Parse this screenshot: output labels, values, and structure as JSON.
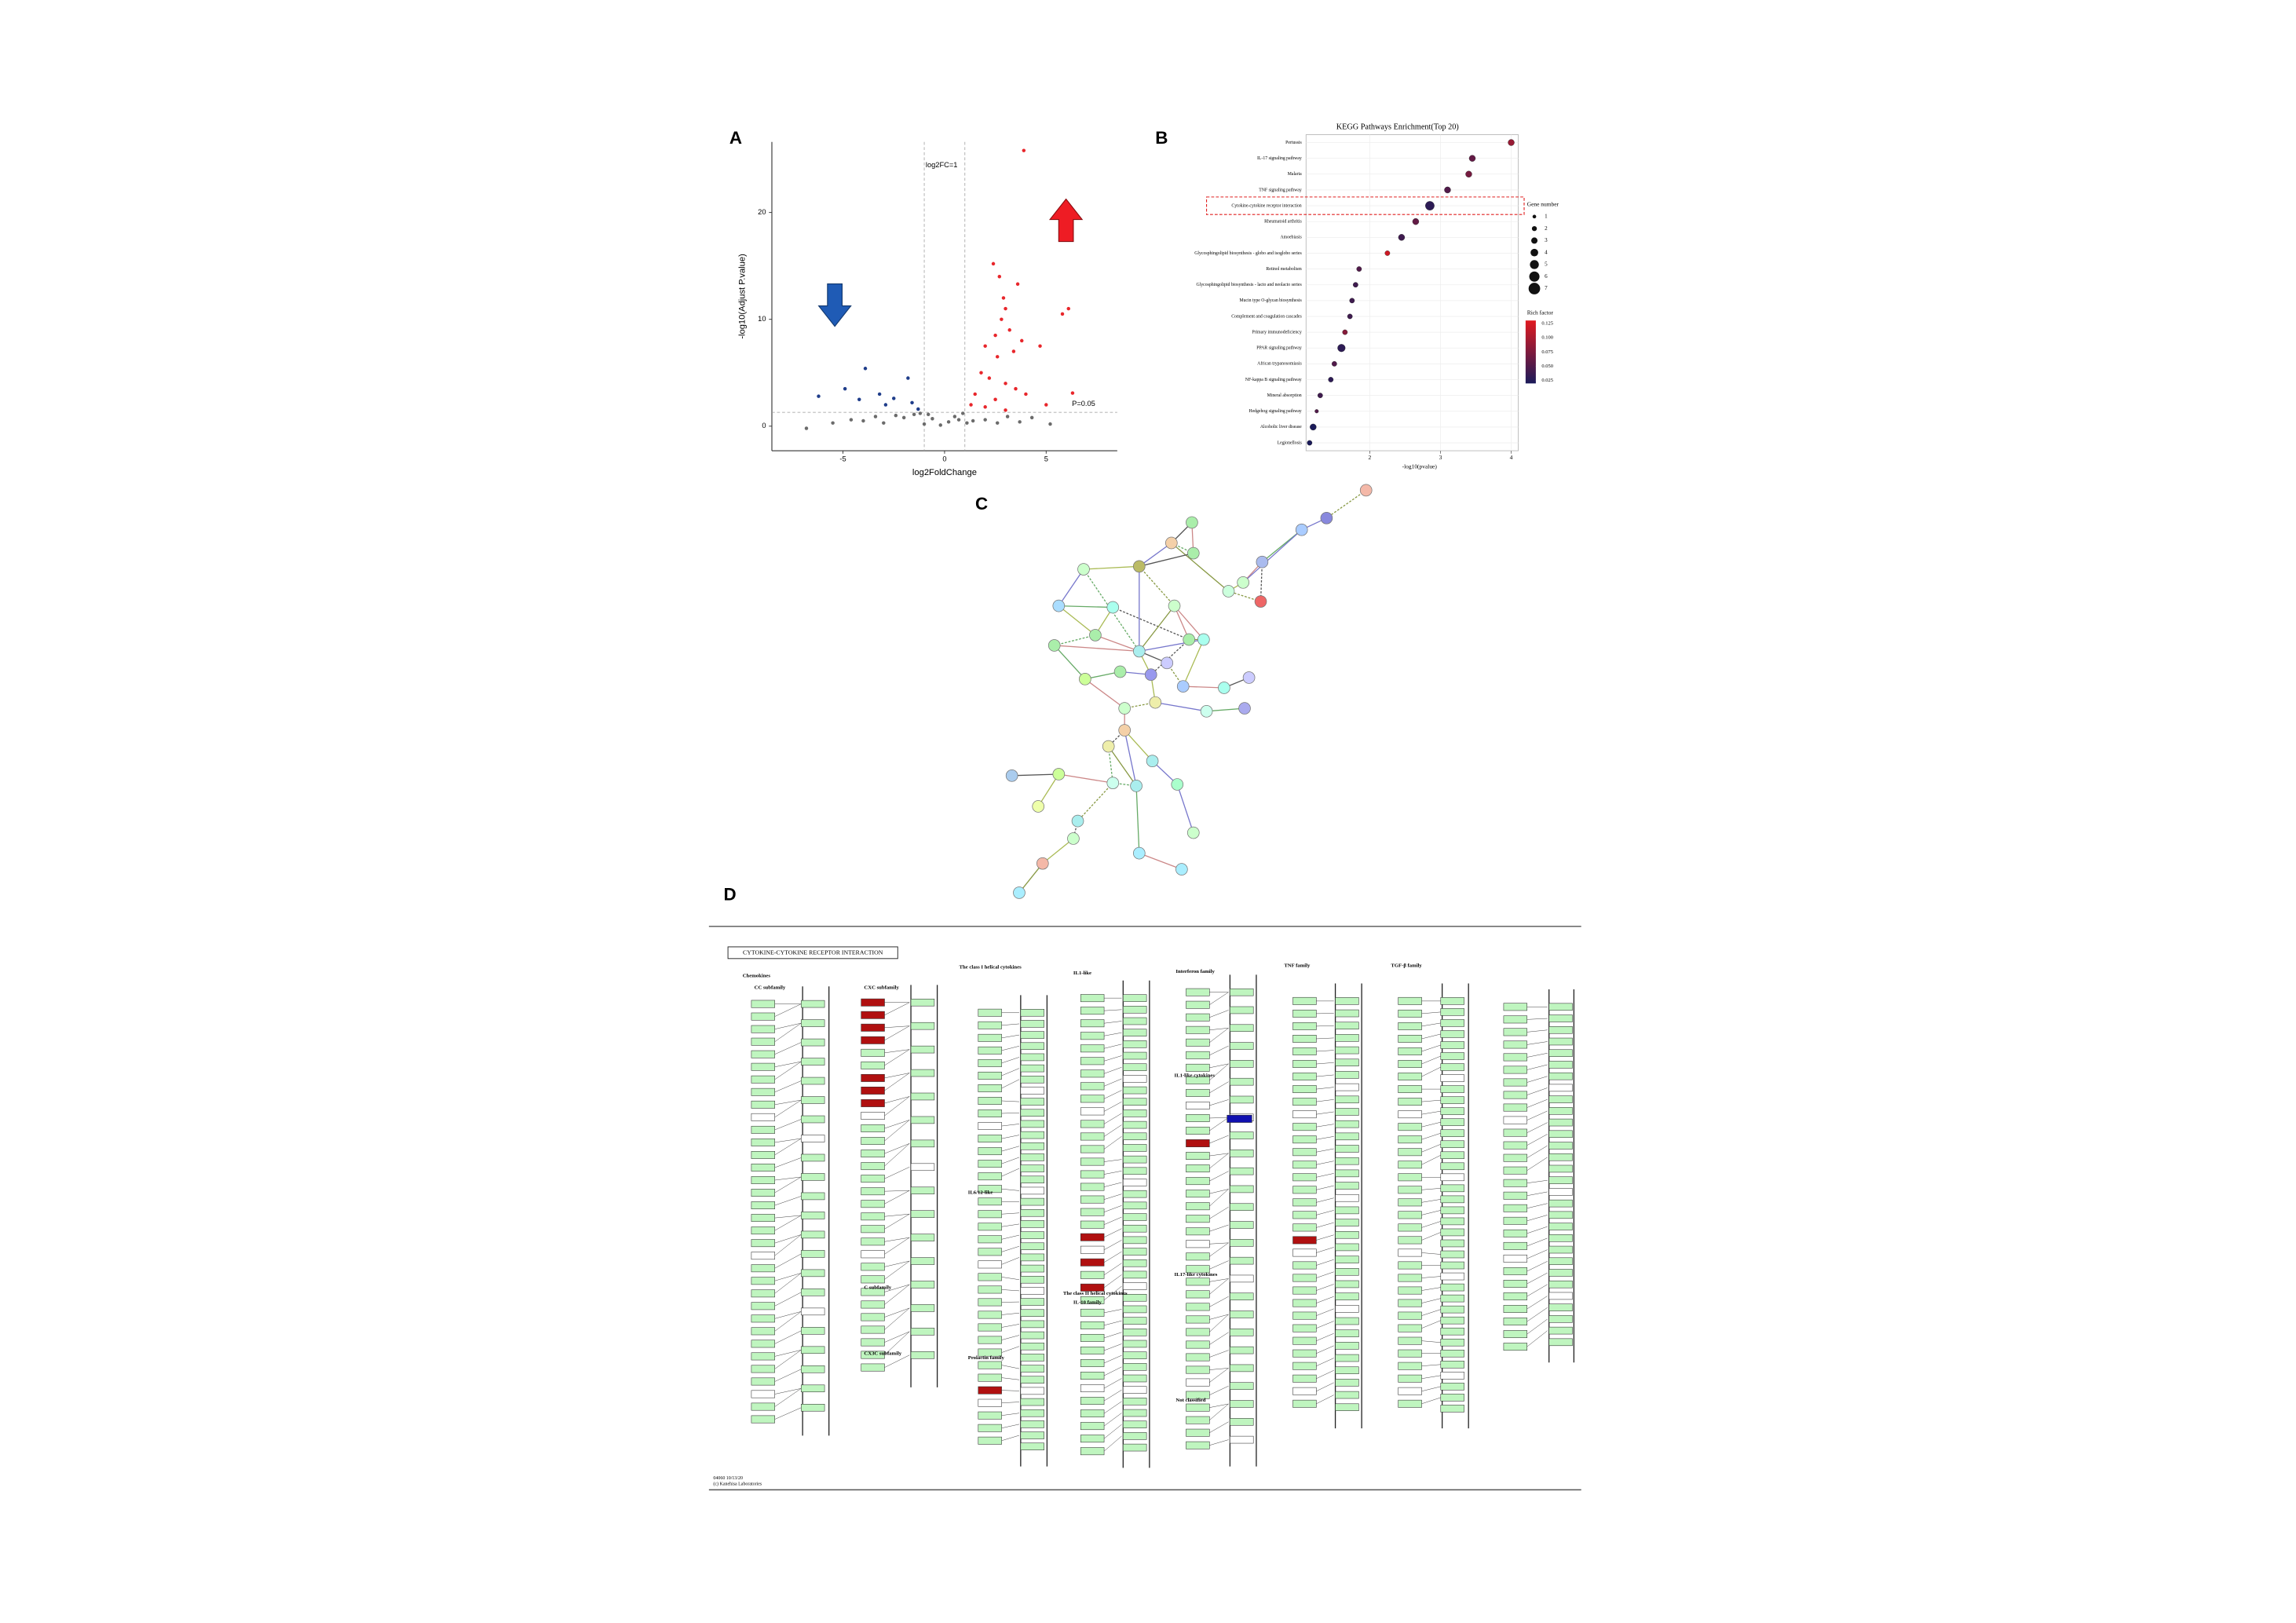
{
  "panel_labels": [
    "A",
    "B",
    "C",
    "D"
  ],
  "chart_data": [
    {
      "type": "scatter",
      "xlabel": "log2FoldChange",
      "ylabel": "-log10(Adjust P.value)",
      "xlim": [
        -8.5,
        8.5
      ],
      "ylim": [
        -2.3,
        26.6
      ],
      "xticks": [
        -5,
        0,
        5
      ],
      "yticks": [
        0,
        10,
        20
      ],
      "vlines": [
        -1,
        1
      ],
      "hline": 1.3,
      "annotations": [
        "log2FC=1",
        "P=0.05"
      ],
      "series": [
        {
          "color": "#e8262b",
          "x": [
            3.9,
            2.4,
            2.7,
            3.6,
            2.9,
            3.0,
            2.8,
            5.8,
            6.1,
            3.2,
            2.5,
            3.8,
            2.0,
            2.6,
            3.4,
            4.7,
            1.8,
            2.2,
            3.0,
            3.5,
            4.0,
            1.5,
            2.5,
            5.0,
            6.3,
            1.3,
            2.0,
            3.0
          ],
          "values": [
            25.8,
            15.2,
            14.0,
            13.3,
            12.0,
            11.0,
            10.0,
            10.5,
            11.0,
            9.0,
            8.5,
            8.0,
            7.5,
            6.5,
            7.0,
            7.5,
            5.0,
            4.5,
            4.0,
            3.5,
            3.0,
            3.0,
            2.5,
            2.0,
            3.1,
            2.0,
            1.8,
            1.5
          ]
        },
        {
          "color": "#1f3d8a",
          "x": [
            -3.9,
            -1.8,
            -4.9,
            -3.2,
            -2.5,
            -6.2,
            -1.6,
            -2.9,
            -4.2,
            -1.3
          ],
          "values": [
            5.4,
            4.5,
            3.5,
            3.0,
            2.6,
            2.8,
            2.2,
            2.0,
            2.5,
            1.6
          ]
        },
        {
          "color": "#6b6b6b",
          "x": [
            -6.8,
            -5.5,
            -4.6,
            -4.0,
            -3.4,
            -3.0,
            -2.4,
            -2.0,
            -1.5,
            -1.0,
            -0.6,
            -0.2,
            0.2,
            0.5,
            0.9,
            1.4,
            2.0,
            2.6,
            3.1,
            3.7,
            4.3,
            5.2,
            -0.8,
            0.7,
            -1.2,
            1.1
          ],
          "values": [
            -0.2,
            0.3,
            0.6,
            0.5,
            0.9,
            0.3,
            1.0,
            0.8,
            1.1,
            0.2,
            0.7,
            0.1,
            0.4,
            0.9,
            1.2,
            0.5,
            0.6,
            0.3,
            0.9,
            0.4,
            0.8,
            0.2,
            1.1,
            0.6,
            1.2,
            0.3
          ]
        }
      ]
    },
    {
      "type": "bubble",
      "title": "KEGG Pathways Enrichment(Top 20)",
      "xlabel": "-log10(pvalue)",
      "xlim": [
        1.1,
        4.1
      ],
      "xticks": [
        2,
        3,
        4
      ],
      "categories": [
        "Pertussis",
        "IL-17 signaling pathway",
        "Malaria",
        "TNF signaling pathway",
        "Cytokine-cytokine receptor interaction",
        "Rheumatoid arthritis",
        "Amoebiasis",
        "Glycosphingolipid biosynthesis - globo and isoglobo series",
        "Retinol metabolism",
        "Glycosphingolipid biosynthesis - lacto and neolacto series",
        "Mucin type O-glycan biosynthesis",
        "Complement and coagulation cascades",
        "Primary immunodeficiency",
        "PPAR signaling pathway",
        "African trypanosomiasis",
        "NF-kappa B signaling pathway",
        "Mineral absorption",
        "Hedgehog signaling pathway",
        "Alcoholic liver disease",
        "Legionellosis"
      ],
      "values": [
        4.0,
        3.45,
        3.4,
        3.1,
        2.85,
        2.65,
        2.45,
        2.25,
        1.85,
        1.8,
        1.75,
        1.72,
        1.65,
        1.6,
        1.5,
        1.45,
        1.3,
        1.25,
        1.2,
        1.15
      ],
      "sizes": [
        3,
        3,
        3,
        3,
        5,
        3,
        3,
        2,
        2,
        2,
        2,
        2,
        2,
        4,
        2,
        2,
        2,
        1,
        3,
        2
      ],
      "rich_factor": [
        0.09,
        0.06,
        0.07,
        0.05,
        0.03,
        0.06,
        0.04,
        0.12,
        0.05,
        0.04,
        0.04,
        0.04,
        0.08,
        0.03,
        0.05,
        0.03,
        0.04,
        0.05,
        0.02,
        0.02
      ],
      "clim": [
        0.02,
        0.13
      ],
      "color_low": "#1b1b5a",
      "color_high": "#e0191f",
      "size_legend": {
        "title": "Gene number",
        "values": [
          1,
          2,
          3,
          4,
          5,
          6,
          7
        ]
      },
      "color_legend": {
        "title": "Rich factor",
        "ticks": [
          0.125,
          {
            "value": 0.1,
            "label": "0.100"
          },
          0.075,
          {
            "value": 0.05,
            "label": "0.050"
          },
          0.025
        ]
      }
    }
  ],
  "pathway_map": {
    "title": "CYTOKINE-CYTOKINE RECEPTOR INTERACTION",
    "headings": [
      "Chemokines",
      "CC subfamily",
      "CXC subfamily",
      "C subfamily",
      "CX3C subfamily",
      "The class I helical cytokines",
      "IL6/12-like",
      "Prolactin family",
      "IL1-like",
      "The class II helical cytokines",
      "IL-10 family",
      "Interferon family",
      "IL1-like cytokines",
      "IL17-like cytokines",
      "Not classified",
      "TNF family",
      "TGF-β family"
    ],
    "footer": [
      "04060 10/13/20",
      "(c) Kanehisa Laboratories"
    ]
  }
}
